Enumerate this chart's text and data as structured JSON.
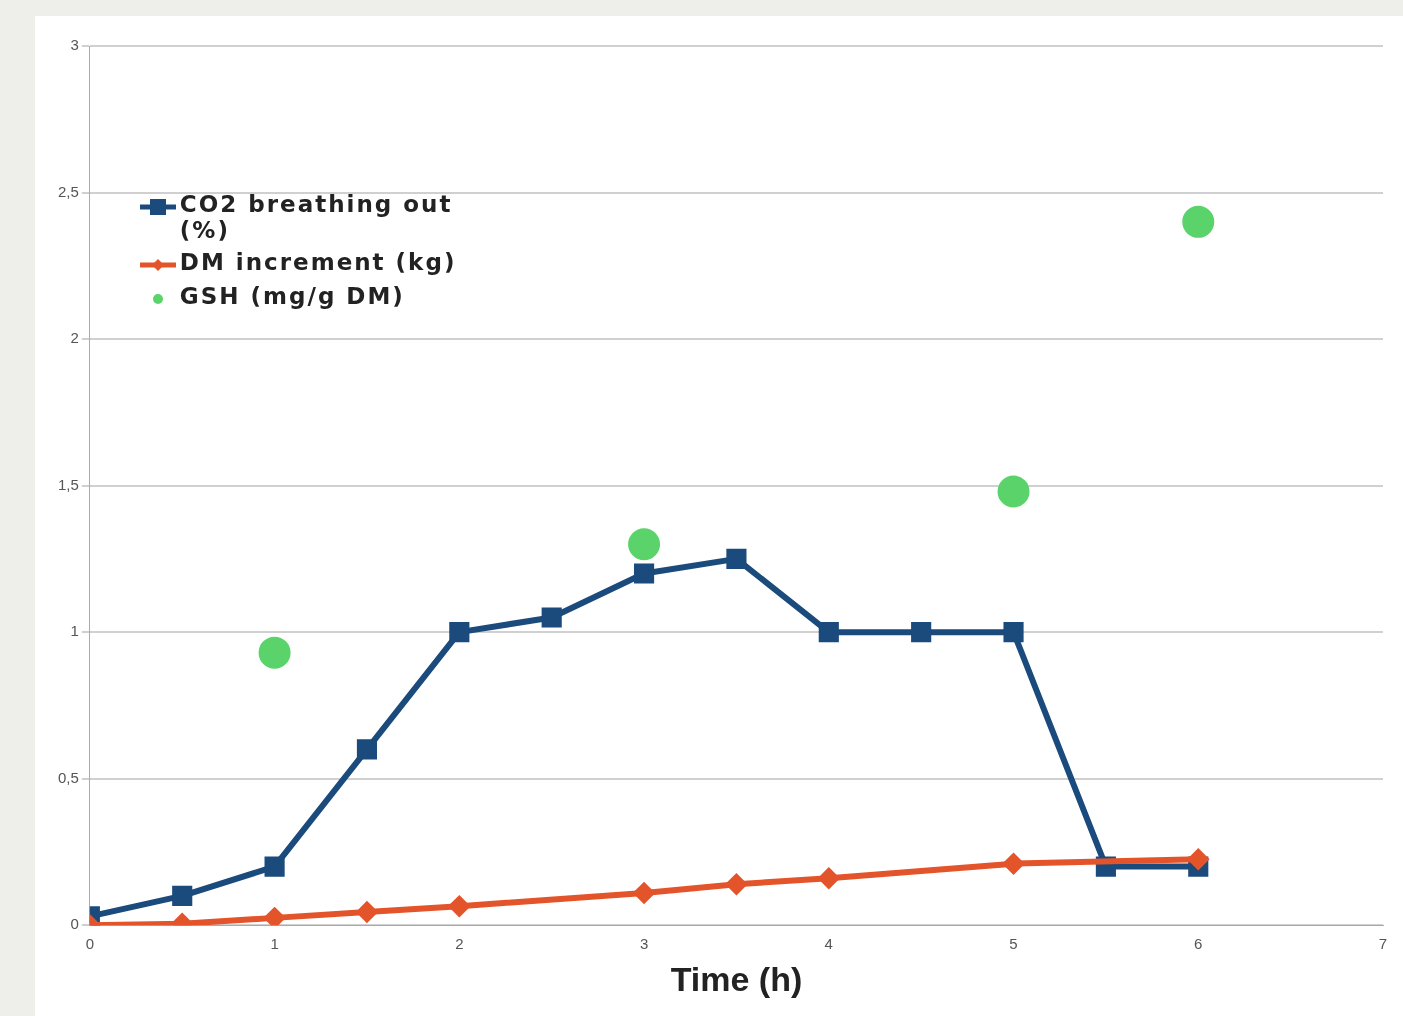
{
  "chart_data": {
    "type": "line",
    "xlabel": "Time (h)",
    "xlim": [
      0,
      7
    ],
    "xticks": [
      0,
      1,
      2,
      3,
      4,
      5,
      6,
      7
    ],
    "ylim": [
      0,
      3
    ],
    "yticks": [
      0,
      {
        "value": 0.5,
        "label": "0,5"
      },
      1,
      {
        "value": 1.5,
        "label": "1,5"
      },
      2,
      {
        "value": 2.5,
        "label": "2,5"
      },
      3
    ],
    "grid": "y",
    "legend": "top left",
    "line_style": "solid",
    "series": [
      {
        "name": "CO2 breathing out (%)",
        "type": "line",
        "marker": "square",
        "color": "#1b4a7c",
        "x": [
          0,
          0.5,
          1,
          1.5,
          2,
          2.5,
          3,
          3.5,
          4,
          4.5,
          5,
          5.5,
          6
        ],
        "values": [
          0.03,
          0.1,
          0.2,
          0.6,
          1.0,
          1.05,
          1.2,
          1.25,
          1.0,
          1.0,
          1.0,
          0.2,
          0.2
        ]
      },
      {
        "name": "DM  increment (kg)",
        "type": "line",
        "marker": "diamond",
        "color": "#e4542a",
        "x": [
          0,
          0.5,
          1,
          1.5,
          2,
          3,
          3.5,
          4,
          5,
          6
        ],
        "values": [
          0,
          0.005,
          0.025,
          0.045,
          0.065,
          0.11,
          0.14,
          0.16,
          0.21,
          0.225
        ]
      },
      {
        "name": "GSH (mg/g DM)",
        "type": "scatter",
        "marker": "circle",
        "color": "#5ad36a",
        "x": [
          1,
          3,
          5,
          6
        ],
        "values": [
          0.93,
          1.3,
          1.48,
          2.4
        ]
      }
    ]
  }
}
